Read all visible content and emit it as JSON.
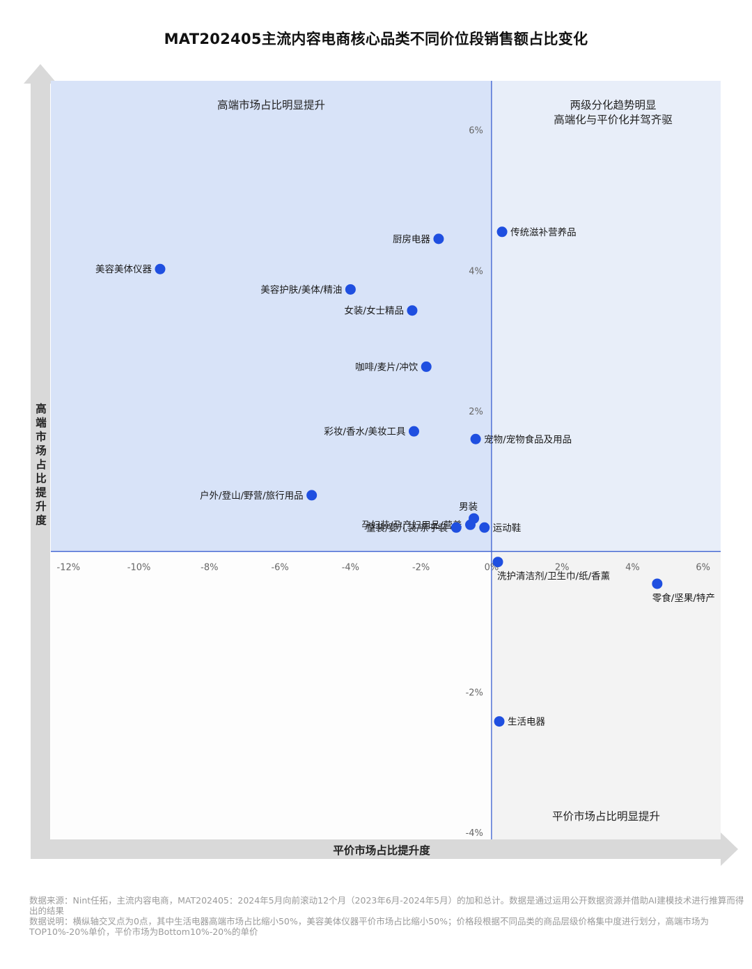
{
  "chart_data": {
    "type": "scatter",
    "title": "MAT202405主流内容电商核心品类不同价位段销售额占比变化",
    "xlabel": "平价市场占比提升度",
    "ylabel": "高端市场占比提升度",
    "xlim": [
      -12.5,
      6.5
    ],
    "ylim": [
      -4.1,
      6.7
    ],
    "x_ticks": [
      {
        "v": -12,
        "label": "-12%"
      },
      {
        "v": -10,
        "label": "-10%"
      },
      {
        "v": -8,
        "label": "-8%"
      },
      {
        "v": -6,
        "label": "-6%"
      },
      {
        "v": -4,
        "label": "-4%"
      },
      {
        "v": -2,
        "label": "-2%"
      },
      {
        "v": 0,
        "label": "0%"
      },
      {
        "v": 2,
        "label": "2%"
      },
      {
        "v": 4,
        "label": "4%"
      },
      {
        "v": 6,
        "label": "6%"
      }
    ],
    "y_ticks": [
      {
        "v": 6,
        "label": "6%"
      },
      {
        "v": 4,
        "label": "4%"
      },
      {
        "v": 2,
        "label": "2%"
      },
      {
        "v": -2,
        "label": "-2%"
      },
      {
        "v": -4,
        "label": "-4%"
      }
    ],
    "quadrants": [
      {
        "text": [
          "高端市场占比明显提升"
        ],
        "pos": "top-left"
      },
      {
        "text": [
          "两级分化趋势明显",
          "高端化与平价化并驾齐驱"
        ],
        "pos": "top-right"
      },
      {
        "text": [
          "平价市场占比明显提升"
        ],
        "pos": "bottom-right"
      }
    ],
    "points": [
      {
        "label": "美容美体仪器",
        "x": -9.4,
        "y": 4.02,
        "anchor": "left"
      },
      {
        "label": "厨房电器",
        "x": -1.5,
        "y": 4.45,
        "anchor": "left"
      },
      {
        "label": "传统滋补营养品",
        "x": 0.3,
        "y": 4.55,
        "anchor": "right"
      },
      {
        "label": "美容护肤/美体/精油",
        "x": -4.0,
        "y": 3.73,
        "anchor": "left"
      },
      {
        "label": "女装/女士精品",
        "x": -2.25,
        "y": 3.43,
        "anchor": "left"
      },
      {
        "label": "咖啡/麦片/冲饮",
        "x": -1.85,
        "y": 2.63,
        "anchor": "left"
      },
      {
        "label": "彩妆/香水/美妆工具",
        "x": -2.2,
        "y": 1.71,
        "anchor": "left"
      },
      {
        "label": "宠物/宠物食品及用品",
        "x": -0.45,
        "y": 1.6,
        "anchor": "right"
      },
      {
        "label": "户外/登山/野营/旅行用品",
        "x": -5.1,
        "y": 0.8,
        "anchor": "left"
      },
      {
        "label": "男装",
        "x": -0.5,
        "y": 0.47,
        "anchor": "above"
      },
      {
        "label": "孕妇装/孕产妇用品/营养",
        "x": -0.6,
        "y": 0.38,
        "anchor": "left"
      },
      {
        "label": "童装/婴儿装/亲子装",
        "x": -1.0,
        "y": 0.34,
        "anchor": "left"
      },
      {
        "label": "运动鞋",
        "x": -0.2,
        "y": 0.34,
        "anchor": "right"
      },
      {
        "label": "洗护清洁剂/卫生巾/纸/香薰",
        "x": 0.18,
        "y": -0.15,
        "anchor": "below"
      },
      {
        "label": "零食/坚果/特产",
        "x": 4.7,
        "y": -0.46,
        "anchor": "below"
      },
      {
        "label": "生活电器",
        "x": 0.22,
        "y": -2.42,
        "anchor": "right"
      }
    ],
    "colors": {
      "point": "#1f4fe0",
      "q_top_left": "#d8e3f8",
      "q_top_right": "#e8eef9",
      "q_bottom_left": "#fdfdfd",
      "q_bottom_right": "#f3f3f3",
      "axis": "#3a5fd0",
      "arrow": "#d9d9d9"
    }
  },
  "footer": {
    "line1": "数据来源：Nint任拓，主流内容电商，MAT202405：2024年5月向前滚动12个月（2023年6月-2024年5月）的加和总计。数据是通过运用公开数据资源并借助AI建模技术进行推算而得出的结果",
    "line2": "数据说明：横纵轴交叉点为0点，其中生活电器高端市场占比缩小50%，美容美体仪器平价市场占比缩小50%；价格段根据不同品类的商品层级价格集中度进行划分，高端市场为TOP10%-20%单价，平价市场为Bottom10%-20%的单价"
  }
}
